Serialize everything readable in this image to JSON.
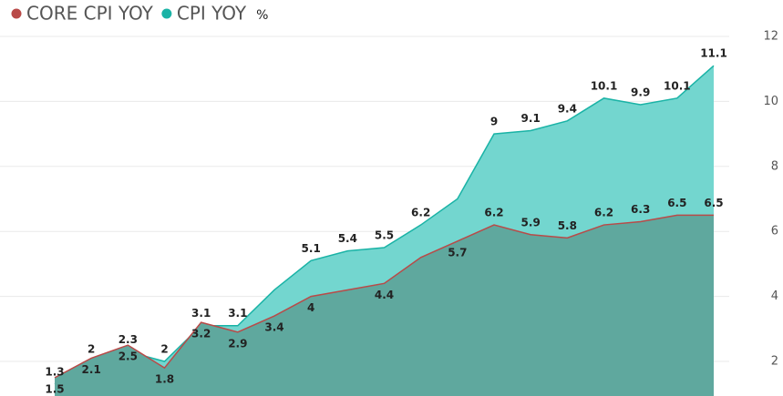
{
  "chart_data": {
    "type": "area",
    "y_label": "%",
    "ylim": [
      1,
      12
    ],
    "yticks": [
      2,
      4,
      6,
      8,
      10,
      12
    ],
    "grid": true,
    "series": [
      {
        "name": "CORE CPI YOY",
        "color": "#b94a48",
        "fill": "#5fa89e",
        "values": [
          1.5,
          2.1,
          2.5,
          1.8,
          3.2,
          2.9,
          3.4,
          4,
          4.2,
          4.4,
          5.2,
          5.7,
          6.2,
          5.9,
          5.8,
          6.2,
          6.3,
          6.5,
          6.5
        ],
        "value_labels": [
          "1.5",
          "2.1",
          "2.5",
          "1.8",
          "3.2",
          "2.9",
          "3.4",
          "4",
          null,
          "4.4",
          null,
          "5.7",
          "6.2",
          "5.9",
          "5.8",
          "6.2",
          "6.3",
          "6.5",
          "6.5"
        ]
      },
      {
        "name": "CPI YOY",
        "color": "#1ab3a6",
        "fill": "#73d6cf",
        "values": [
          1.3,
          2,
          2.3,
          2,
          3.1,
          3.1,
          4.2,
          5.1,
          5.4,
          5.5,
          6.2,
          7,
          9,
          9.1,
          9.4,
          10.1,
          9.9,
          10.1,
          11.1
        ],
        "value_labels": [
          "1.3",
          "2",
          "2.3",
          "2",
          "3.1",
          "3.1",
          null,
          "5.1",
          "5.4",
          "5.5",
          "6.2",
          null,
          "9",
          "9.1",
          "9.4",
          "10.1",
          "9.9",
          "10.1",
          "11.1"
        ]
      }
    ]
  }
}
